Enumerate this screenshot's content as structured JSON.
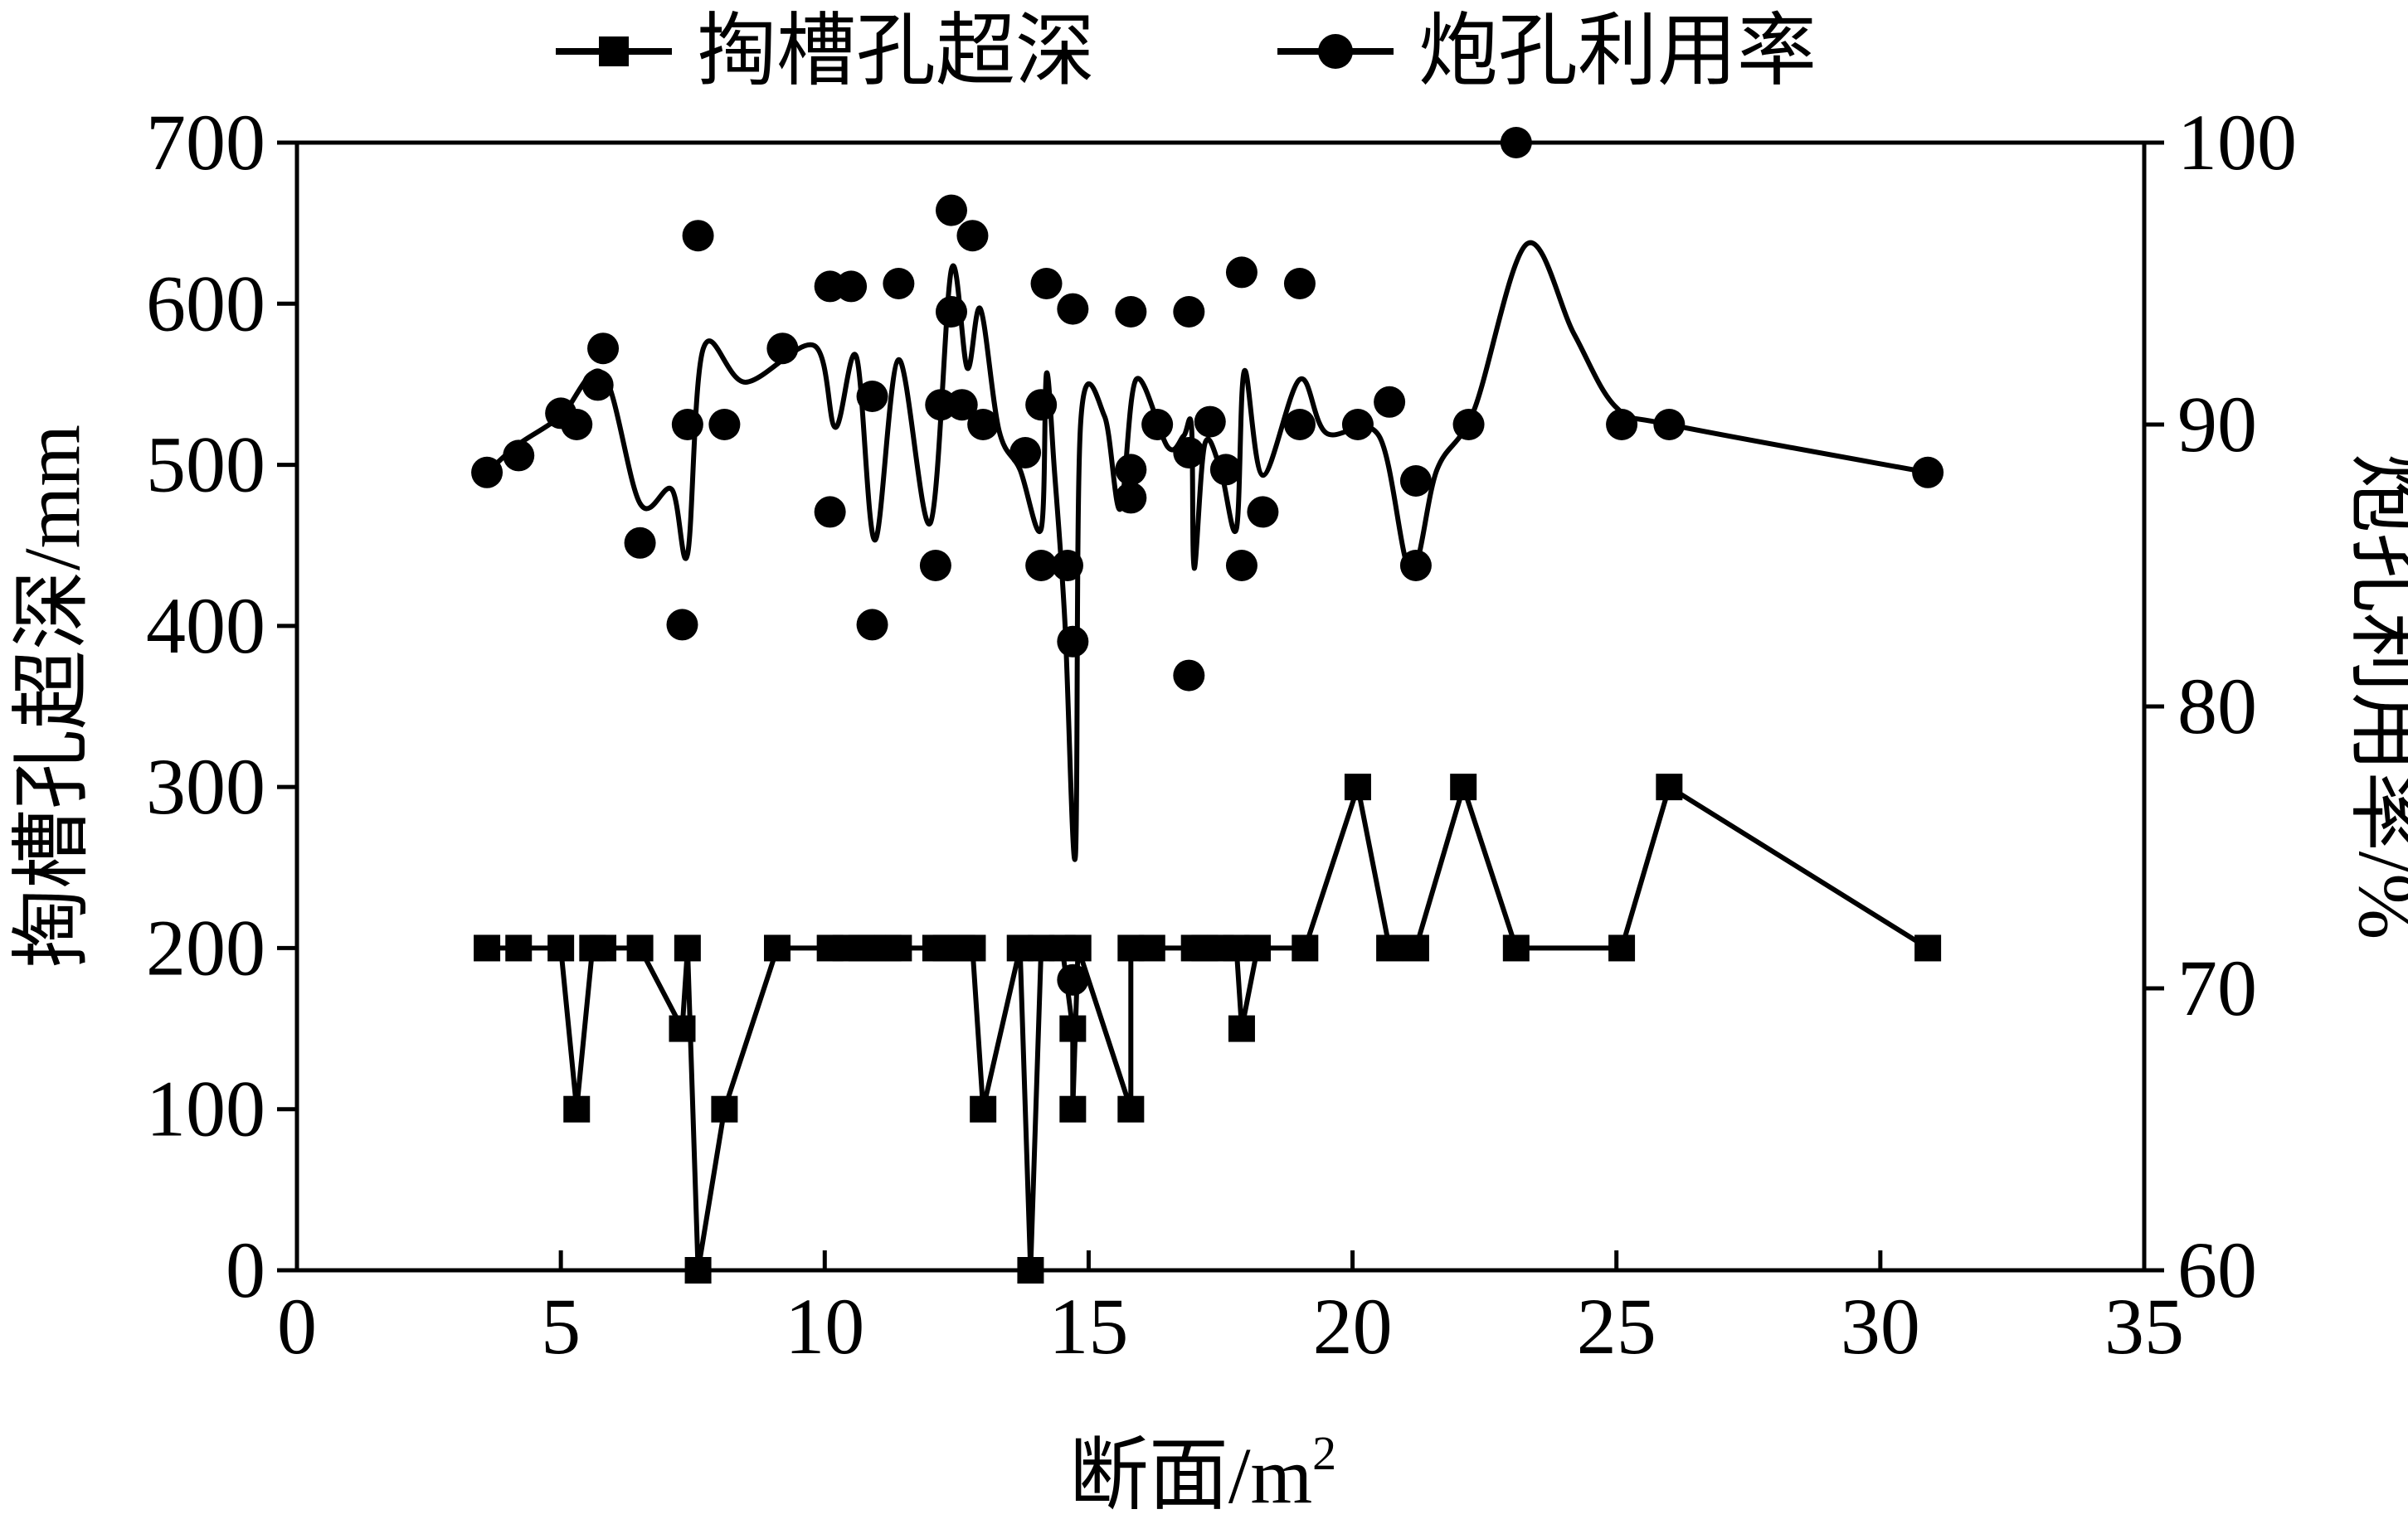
{
  "chart_data": {
    "type": "line",
    "xlabel": "断面/m",
    "xlabel_sup": "2",
    "ylabel_left": "掏槽孔超深/mm",
    "ylabel_right": "炮孔利用率/%",
    "xlim": [
      0,
      35
    ],
    "ylim_left": [
      0,
      700
    ],
    "ylim_right": [
      60,
      100
    ],
    "x_ticks": [
      0,
      5,
      10,
      15,
      20,
      25,
      30,
      35
    ],
    "y_left_ticks": [
      0,
      100,
      200,
      300,
      400,
      500,
      600,
      700
    ],
    "y_right_ticks": [
      60,
      70,
      80,
      90,
      100
    ],
    "legend_position": "top-center",
    "grid": false,
    "series": [
      {
        "name": "掏槽孔超深",
        "axis": "left",
        "marker": "square",
        "line": "straight",
        "points": [
          [
            3.6,
            200
          ],
          [
            4.2,
            200
          ],
          [
            5.0,
            200
          ],
          [
            5.3,
            100
          ],
          [
            5.6,
            200
          ],
          [
            5.8,
            200
          ],
          [
            6.5,
            200
          ],
          [
            7.3,
            150
          ],
          [
            7.4,
            200
          ],
          [
            7.6,
            0
          ],
          [
            8.1,
            100
          ],
          [
            9.1,
            200
          ],
          [
            10.1,
            200
          ],
          [
            10.4,
            200
          ],
          [
            10.7,
            200
          ],
          [
            10.9,
            200
          ],
          [
            11.2,
            200
          ],
          [
            11.4,
            200
          ],
          [
            12.1,
            200
          ],
          [
            12.3,
            200
          ],
          [
            12.6,
            200
          ],
          [
            12.8,
            200
          ],
          [
            13.0,
            100
          ],
          [
            13.7,
            200
          ],
          [
            13.9,
            0
          ],
          [
            14.1,
            200
          ],
          [
            14.5,
            200
          ],
          [
            14.7,
            150
          ],
          [
            14.7,
            100
          ],
          [
            14.8,
            200
          ],
          [
            15.8,
            100
          ],
          [
            15.8,
            200
          ],
          [
            16.2,
            200
          ],
          [
            17.0,
            200
          ],
          [
            17.2,
            200
          ],
          [
            17.5,
            200
          ],
          [
            17.8,
            200
          ],
          [
            17.9,
            150
          ],
          [
            18.2,
            200
          ],
          [
            19.1,
            200
          ],
          [
            20.1,
            300
          ],
          [
            20.7,
            200
          ],
          [
            21.2,
            200
          ],
          [
            22.1,
            300
          ],
          [
            23.1,
            200
          ],
          [
            25.1,
            200
          ],
          [
            26.0,
            300
          ],
          [
            30.9,
            200
          ]
        ]
      },
      {
        "name": "炮孔利用率",
        "axis": "right",
        "marker": "circle",
        "line": "smooth",
        "curve": [
          [
            3.6,
            88.3
          ],
          [
            4.2,
            89.3
          ],
          [
            5.0,
            90.3
          ],
          [
            5.8,
            91.8
          ],
          [
            6.5,
            87.2
          ],
          [
            7.1,
            87.7
          ],
          [
            7.4,
            85.4
          ],
          [
            7.7,
            92.7
          ],
          [
            8.5,
            91.5
          ],
          [
            9.8,
            92.8
          ],
          [
            10.2,
            89.9
          ],
          [
            10.6,
            92.4
          ],
          [
            10.95,
            85.9
          ],
          [
            11.4,
            92.3
          ],
          [
            12.0,
            86.5
          ],
          [
            12.4,
            95.5
          ],
          [
            12.7,
            92.0
          ],
          [
            12.95,
            94.1
          ],
          [
            13.3,
            89.8
          ],
          [
            13.7,
            88.4
          ],
          [
            14.1,
            86.3
          ],
          [
            14.2,
            91.8
          ],
          [
            14.35,
            88.4
          ],
          [
            14.55,
            83.0
          ],
          [
            14.75,
            74.7
          ],
          [
            14.85,
            90.1
          ],
          [
            15.3,
            90.3
          ],
          [
            15.6,
            87.0
          ],
          [
            15.9,
            91.6
          ],
          [
            16.5,
            89.2
          ],
          [
            16.8,
            89.6
          ],
          [
            16.95,
            89.9
          ],
          [
            17.0,
            84.9
          ],
          [
            17.2,
            89.3
          ],
          [
            17.5,
            88.4
          ],
          [
            17.8,
            86.3
          ],
          [
            17.95,
            91.9
          ],
          [
            18.3,
            88.2
          ],
          [
            19.0,
            91.6
          ],
          [
            19.5,
            89.7
          ],
          [
            20.5,
            89.6
          ],
          [
            21.1,
            84.8
          ],
          [
            21.6,
            88.4
          ],
          [
            22.3,
            90.5
          ],
          [
            23.3,
            96.4
          ],
          [
            24.2,
            93.2
          ],
          [
            25.0,
            90.6
          ],
          [
            26.0,
            90.0
          ],
          [
            30.9,
            88.3
          ]
        ],
        "points": [
          [
            3.6,
            88.3
          ],
          [
            4.2,
            88.9
          ],
          [
            5.0,
            90.4
          ],
          [
            5.3,
            90.0
          ],
          [
            5.7,
            91.4
          ],
          [
            5.8,
            92.7
          ],
          [
            6.5,
            85.8
          ],
          [
            7.3,
            82.9
          ],
          [
            7.4,
            90.0
          ],
          [
            7.6,
            96.7
          ],
          [
            8.1,
            90.0
          ],
          [
            9.2,
            92.7
          ],
          [
            10.1,
            86.9
          ],
          [
            10.1,
            94.9
          ],
          [
            10.5,
            94.9
          ],
          [
            10.9,
            91.0
          ],
          [
            10.9,
            82.9
          ],
          [
            11.4,
            95.0
          ],
          [
            12.1,
            85.0
          ],
          [
            12.2,
            90.7
          ],
          [
            12.4,
            97.6
          ],
          [
            12.4,
            94.0
          ],
          [
            12.6,
            90.7
          ],
          [
            12.8,
            96.7
          ],
          [
            13.0,
            90.0
          ],
          [
            13.8,
            89.0
          ],
          [
            14.1,
            90.7
          ],
          [
            14.1,
            85.0
          ],
          [
            14.2,
            95.0
          ],
          [
            14.6,
            85.0
          ],
          [
            14.7,
            94.1
          ],
          [
            14.7,
            82.3
          ],
          [
            14.7,
            70.3
          ],
          [
            15.8,
            88.4
          ],
          [
            15.8,
            87.4
          ],
          [
            15.8,
            94.0
          ],
          [
            16.3,
            90.0
          ],
          [
            16.9,
            94.0
          ],
          [
            16.9,
            81.1
          ],
          [
            16.9,
            89.0
          ],
          [
            17.3,
            90.1
          ],
          [
            17.6,
            88.4
          ],
          [
            17.9,
            95.4
          ],
          [
            17.9,
            85.0
          ],
          [
            18.3,
            86.9
          ],
          [
            19.0,
            95.0
          ],
          [
            19.0,
            90.0
          ],
          [
            20.1,
            90.0
          ],
          [
            20.7,
            90.8
          ],
          [
            21.2,
            85.0
          ],
          [
            21.2,
            88.0
          ],
          [
            22.2,
            90.0
          ],
          [
            23.1,
            100.0
          ],
          [
            25.1,
            90.0
          ],
          [
            26.0,
            90.0
          ],
          [
            30.9,
            88.3
          ]
        ]
      }
    ]
  }
}
